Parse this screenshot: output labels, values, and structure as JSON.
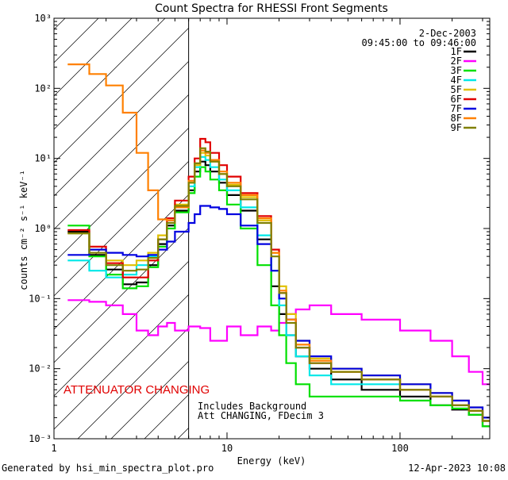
{
  "chart_data": {
    "type": "line",
    "step": true,
    "title": "Count Spectra for RHESSI Front Segments",
    "xlabel": "Energy (keV)",
    "ylabel": "counts cm⁻² s⁻¹ keV⁻¹",
    "xscale": "log",
    "yscale": "log",
    "xlim": [
      1,
      330
    ],
    "ylim": [
      0.001,
      1000
    ],
    "x_ticks": [
      "1",
      "10",
      "100"
    ],
    "y_ticks": [
      "10⁻³",
      "10⁻²",
      "10⁻¹",
      "10⁰",
      "10¹",
      "10²",
      "10³"
    ],
    "attenuator_line_kev": 6.0,
    "hatched_region_kev": [
      1,
      6.0
    ],
    "legend_position": "top-right",
    "date": "2-Dec-2003",
    "time_range": "09:45:00 to 09:46:00",
    "annotations": {
      "attenuator": "ATTENUATOR CHANGING",
      "background": "Includes Background",
      "att_status": "Att CHANGING, FDecim 3"
    },
    "series": [
      {
        "name": "1F",
        "color": "#000000",
        "x": [
          1.2,
          1.6,
          2.0,
          2.5,
          3.0,
          3.5,
          4.0,
          4.5,
          5.0,
          6.0,
          6.5,
          7.0,
          7.5,
          8.0,
          9.0,
          10.0,
          12.0,
          15.0,
          18.0,
          20.0,
          22.0,
          25.0,
          30.0,
          40.0,
          60.0,
          100.0,
          150.0,
          200.0,
          250.0,
          300.0
        ],
        "values": [
          0.9,
          0.42,
          0.26,
          0.16,
          0.17,
          0.3,
          0.6,
          1.1,
          1.8,
          3.5,
          6.5,
          9.0,
          8.0,
          6.5,
          4.5,
          3.0,
          1.8,
          0.7,
          0.15,
          0.06,
          0.03,
          0.015,
          0.01,
          0.007,
          0.005,
          0.004,
          0.003,
          0.0026,
          0.0022,
          0.0015
        ]
      },
      {
        "name": "2F",
        "color": "#ff00ff",
        "x": [
          1.2,
          1.6,
          2.0,
          2.5,
          3.0,
          3.5,
          4.0,
          4.5,
          5.0,
          6.0,
          7.0,
          8.0,
          10.0,
          12.0,
          15.0,
          18.0,
          20.0,
          22.0,
          25.0,
          30.0,
          40.0,
          60.0,
          100.0,
          150.0,
          200.0,
          250.0,
          300.0
        ],
        "values": [
          0.095,
          0.09,
          0.08,
          0.06,
          0.035,
          0.03,
          0.04,
          0.045,
          0.035,
          0.04,
          0.038,
          0.025,
          0.04,
          0.03,
          0.04,
          0.035,
          0.045,
          0.06,
          0.07,
          0.08,
          0.06,
          0.05,
          0.035,
          0.025,
          0.015,
          0.009,
          0.006
        ]
      },
      {
        "name": "3F",
        "color": "#00e000",
        "x": [
          1.2,
          1.6,
          2.0,
          2.5,
          3.0,
          3.5,
          4.0,
          4.5,
          5.0,
          6.0,
          6.5,
          7.0,
          7.5,
          8.0,
          9.0,
          10.0,
          12.0,
          15.0,
          18.0,
          20.0,
          22.0,
          25.0,
          30.0,
          40.0,
          60.0,
          100.0,
          150.0,
          200.0,
          250.0,
          300.0
        ],
        "values": [
          1.1,
          0.4,
          0.22,
          0.14,
          0.15,
          0.28,
          0.55,
          1.0,
          1.7,
          3.2,
          5.5,
          7.5,
          6.5,
          5.0,
          3.5,
          2.2,
          1.0,
          0.3,
          0.08,
          0.03,
          0.012,
          0.006,
          0.004,
          0.004,
          0.004,
          0.0035,
          0.003,
          0.0027,
          0.0022,
          0.0015
        ]
      },
      {
        "name": "4F",
        "color": "#00e8e8",
        "x": [
          1.2,
          1.6,
          2.0,
          2.5,
          3.0,
          3.5,
          4.0,
          4.5,
          5.0,
          6.0,
          6.5,
          7.0,
          7.5,
          8.0,
          9.0,
          10.0,
          12.0,
          15.0,
          18.0,
          20.0,
          22.0,
          25.0,
          30.0,
          40.0,
          60.0,
          100.0,
          150.0,
          200.0,
          250.0,
          300.0
        ],
        "values": [
          0.35,
          0.25,
          0.2,
          0.22,
          0.3,
          0.4,
          0.7,
          1.2,
          2.0,
          4.0,
          7.5,
          10.5,
          9.5,
          7.5,
          5.0,
          3.5,
          2.0,
          0.8,
          0.25,
          0.08,
          0.03,
          0.015,
          0.008,
          0.006,
          0.006,
          0.005,
          0.004,
          0.003,
          0.0025,
          0.0018
        ]
      },
      {
        "name": "5F",
        "color": "#e0c000",
        "x": [
          1.2,
          1.6,
          2.0,
          2.5,
          3.0,
          3.5,
          4.0,
          4.5,
          5.0,
          6.0,
          6.5,
          7.0,
          7.5,
          8.0,
          9.0,
          10.0,
          12.0,
          15.0,
          18.0,
          20.0,
          22.0,
          25.0,
          30.0,
          40.0,
          60.0,
          100.0,
          150.0,
          200.0,
          250.0,
          300.0
        ],
        "values": [
          0.85,
          0.5,
          0.35,
          0.3,
          0.35,
          0.45,
          0.8,
          1.3,
          2.2,
          4.5,
          8.0,
          12.0,
          11.0,
          9.0,
          6.0,
          4.2,
          2.8,
          1.3,
          0.45,
          0.15,
          0.06,
          0.025,
          0.014,
          0.01,
          0.008,
          0.006,
          0.0045,
          0.0035,
          0.0028,
          0.002
        ]
      },
      {
        "name": "6F",
        "color": "#e00000",
        "x": [
          1.2,
          1.6,
          2.0,
          2.5,
          3.0,
          3.5,
          4.0,
          4.5,
          5.0,
          6.0,
          6.5,
          7.0,
          7.5,
          8.0,
          9.0,
          10.0,
          12.0,
          15.0,
          18.0,
          20.0,
          22.0,
          25.0,
          30.0,
          40.0,
          60.0,
          100.0,
          150.0,
          200.0,
          250.0,
          300.0
        ],
        "values": [
          0.95,
          0.55,
          0.32,
          0.2,
          0.2,
          0.35,
          0.7,
          1.4,
          2.5,
          5.5,
          10.0,
          19.0,
          17.0,
          12.0,
          8.0,
          5.5,
          3.2,
          1.5,
          0.5,
          0.12,
          0.05,
          0.02,
          0.012,
          0.009,
          0.007,
          0.005,
          0.004,
          0.003,
          0.0025,
          0.0018
        ]
      },
      {
        "name": "7F",
        "color": "#0000e0",
        "x": [
          1.2,
          1.6,
          2.0,
          2.5,
          3.0,
          3.5,
          4.0,
          4.5,
          5.0,
          6.0,
          6.5,
          7.0,
          7.5,
          8.0,
          9.0,
          10.0,
          12.0,
          15.0,
          18.0,
          20.0,
          22.0,
          25.0,
          30.0,
          40.0,
          60.0,
          100.0,
          150.0,
          200.0,
          250.0,
          300.0
        ],
        "values": [
          0.42,
          0.5,
          0.45,
          0.42,
          0.4,
          0.42,
          0.5,
          0.65,
          0.9,
          1.2,
          1.6,
          2.1,
          2.1,
          2.0,
          1.9,
          1.6,
          1.1,
          0.6,
          0.25,
          0.1,
          0.05,
          0.025,
          0.015,
          0.01,
          0.008,
          0.006,
          0.0045,
          0.0035,
          0.0028,
          0.002
        ]
      },
      {
        "name": "8F",
        "color": "#ff8000",
        "x": [
          1.2,
          1.6,
          2.0,
          2.5,
          3.0,
          3.5,
          4.0,
          4.5,
          5.0,
          6.0,
          6.5,
          7.0,
          7.5,
          8.0,
          9.0,
          10.0,
          12.0,
          15.0,
          18.0,
          20.0,
          22.0,
          25.0,
          30.0,
          40.0,
          60.0,
          100.0,
          150.0,
          200.0,
          250.0,
          300.0
        ],
        "values": [
          220,
          160,
          110,
          45,
          12,
          3.5,
          1.35,
          1.3,
          2.0,
          4.8,
          8.5,
          13.0,
          12.0,
          9.5,
          6.5,
          4.5,
          3.0,
          1.4,
          0.45,
          0.13,
          0.05,
          0.022,
          0.013,
          0.009,
          0.007,
          0.005,
          0.004,
          0.003,
          0.0025,
          0.0018
        ]
      },
      {
        "name": "9F",
        "color": "#808000",
        "x": [
          1.2,
          1.6,
          2.0,
          2.5,
          3.0,
          3.5,
          4.0,
          4.5,
          5.0,
          6.0,
          6.5,
          7.0,
          7.5,
          8.0,
          9.0,
          10.0,
          12.0,
          15.0,
          18.0,
          20.0,
          22.0,
          25.0,
          30.0,
          40.0,
          60.0,
          100.0,
          150.0,
          200.0,
          250.0,
          300.0
        ],
        "values": [
          0.85,
          0.45,
          0.3,
          0.25,
          0.26,
          0.38,
          0.7,
          1.2,
          2.1,
          4.5,
          8.5,
          14.0,
          12.5,
          9.0,
          6.0,
          4.0,
          2.6,
          1.2,
          0.4,
          0.12,
          0.045,
          0.02,
          0.012,
          0.009,
          0.007,
          0.005,
          0.004,
          0.003,
          0.0025,
          0.0018
        ]
      }
    ]
  },
  "footer": {
    "generated_by": "Generated by  hsi_min_spectra_plot.pro",
    "timestamp": "12-Apr-2023 10:08"
  }
}
